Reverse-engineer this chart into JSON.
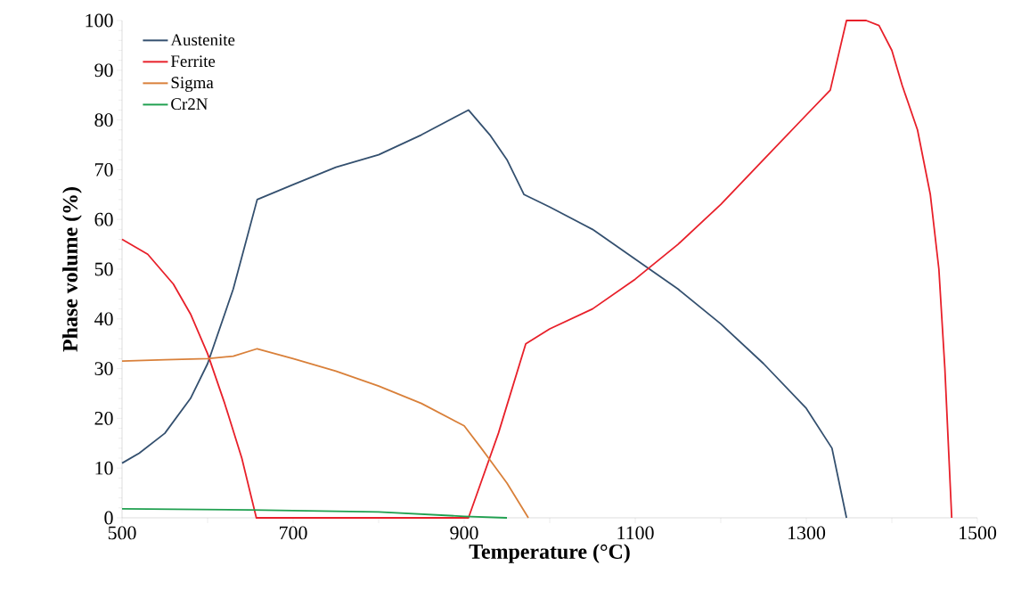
{
  "chart_data": {
    "type": "line",
    "xlabel": "Temperature (°C)",
    "ylabel": "Phase volume (%)",
    "xlim": [
      500,
      1500
    ],
    "ylim": [
      0,
      100
    ],
    "xticks": [
      500,
      {
        "value": 600,
        "label": null
      },
      700,
      {
        "value": 800,
        "label": null
      },
      900,
      {
        "value": 1000,
        "label": null
      },
      1100,
      {
        "value": 1200,
        "label": null
      },
      1300,
      {
        "value": 1400,
        "label": null
      },
      1500
    ],
    "yticks": [
      0,
      10,
      20,
      30,
      40,
      50,
      60,
      70,
      80,
      90,
      100
    ],
    "grid": false,
    "legend": "top left",
    "marker": "none",
    "line_style": "solid",
    "series": [
      {
        "name": "Austenite",
        "color": "#34506f",
        "x": [
          500,
          520,
          550,
          580,
          600,
          630,
          658,
          700,
          750,
          800,
          850,
          905,
          930,
          950,
          970,
          1000,
          1050,
          1100,
          1150,
          1200,
          1250,
          1300,
          1330,
          1347
        ],
        "values": [
          11,
          13,
          17,
          24,
          31,
          46,
          64,
          67,
          70.5,
          73,
          77,
          82,
          77,
          72,
          65,
          62.5,
          58,
          52,
          46,
          39,
          31,
          22,
          14,
          0
        ]
      },
      {
        "name": "Ferrite",
        "color": "#e8202a",
        "x": [
          500,
          530,
          560,
          580,
          600,
          620,
          640,
          657,
          700,
          800,
          905,
          940,
          972,
          1000,
          1050,
          1100,
          1150,
          1200,
          1250,
          1300,
          1328,
          1347,
          1370,
          1385,
          1400,
          1412,
          1430,
          1445,
          1455,
          1462,
          1466,
          1470
        ],
        "values": [
          56,
          53,
          47,
          41,
          33,
          23,
          12,
          0,
          0,
          0,
          0,
          17,
          35,
          38,
          42,
          48,
          55,
          63,
          72,
          81,
          86,
          100,
          100,
          99,
          94,
          87,
          78,
          65,
          50,
          30,
          15,
          0
        ]
      },
      {
        "name": "Sigma",
        "color": "#d9803a",
        "x": [
          500,
          550,
          600,
          630,
          658,
          700,
          750,
          800,
          850,
          900,
          920,
          950,
          975
        ],
        "values": [
          31.5,
          31.8,
          32,
          32.5,
          34,
          32,
          29.5,
          26.5,
          23,
          18.5,
          14,
          7,
          0
        ]
      },
      {
        "name": "Cr2N",
        "color": "#20a050",
        "x": [
          500,
          650,
          800,
          900,
          950
        ],
        "values": [
          1.8,
          1.6,
          1.2,
          0.3,
          0
        ]
      }
    ]
  }
}
